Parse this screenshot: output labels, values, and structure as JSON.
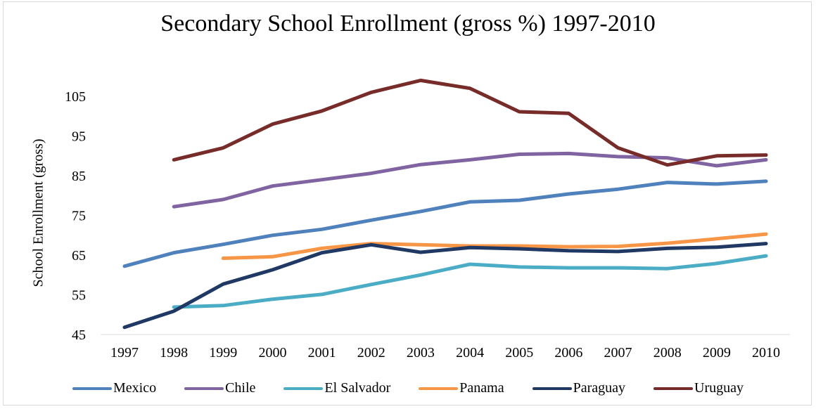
{
  "chart_data": {
    "type": "line",
    "title": "Secondary School Enrollment (gross %) 1997-2010",
    "xlabel": "",
    "ylabel": "School Enrollment (gross)",
    "ylim": [
      45,
      110
    ],
    "yticks": [
      "45",
      "55",
      "65",
      "75",
      "85",
      "95",
      "105"
    ],
    "categories": [
      "1997",
      "1998",
      "1999",
      "2000",
      "2001",
      "2002",
      "2003",
      "2004",
      "2005",
      "2006",
      "2007",
      "2008",
      "2009",
      "2010"
    ],
    "grid": false,
    "legend_position": "bottom",
    "series": [
      {
        "name": "Mexico",
        "color": "#4f81bd",
        "values": [
          62.2,
          65.6,
          67.7,
          70.0,
          71.5,
          73.8,
          76.0,
          78.4,
          78.8,
          80.4,
          81.6,
          83.3,
          82.9,
          83.6
        ]
      },
      {
        "name": "Chile",
        "color": "#8064a2",
        "values": [
          null,
          77.2,
          79.0,
          82.4,
          84.0,
          85.6,
          87.8,
          89.0,
          90.4,
          90.6,
          89.8,
          89.5,
          87.5,
          89.0
        ]
      },
      {
        "name": "El Salvador",
        "color": "#4bacc6",
        "values": [
          null,
          51.9,
          52.3,
          53.9,
          55.1,
          57.6,
          60.0,
          62.7,
          62.0,
          61.8,
          61.8,
          61.6,
          62.9,
          64.8
        ]
      },
      {
        "name": "Panama",
        "color": "#f79646",
        "values": [
          null,
          null,
          64.2,
          64.6,
          66.7,
          67.9,
          67.6,
          67.3,
          67.3,
          67.1,
          67.2,
          68.0,
          69.1,
          70.3
        ]
      },
      {
        "name": "Paraguay",
        "color": "#1f3864",
        "values": [
          46.8,
          50.9,
          57.7,
          61.3,
          65.6,
          67.6,
          65.7,
          66.9,
          66.6,
          66.1,
          65.9,
          66.7,
          67.0,
          67.9
        ]
      },
      {
        "name": "Uruguay",
        "color": "#772c2a",
        "values": [
          null,
          89.0,
          92.0,
          98.0,
          101.3,
          106.0,
          109.0,
          107.0,
          101.1,
          100.7,
          92.0,
          87.7,
          90.0,
          90.2
        ]
      }
    ]
  }
}
